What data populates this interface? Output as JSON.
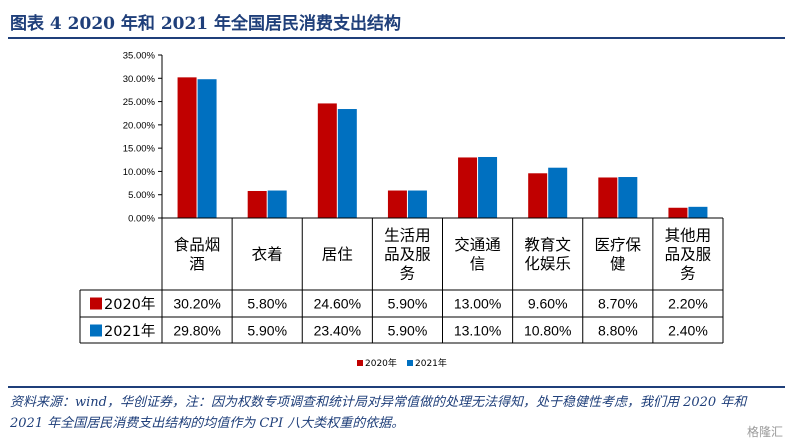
{
  "title": "图表 4  2020 年和 2021 年全国居民消费支出结构",
  "footnote": "资料来源：wind，华创证券，注：因为权数专项调查和统计局对异常值做的处理无法得知，处于稳健性考虑，我们用 2020 年和 2021 年全国居民消费支出结构的均值作为 CPI 八大类权重的依据。",
  "watermark": "格隆汇",
  "colors": {
    "s2020": "#c00000",
    "s2021": "#0070c0",
    "text": "#000000",
    "accent": "#1f3f7a"
  },
  "chart_data": {
    "type": "bar",
    "categories": [
      [
        "食品烟",
        "酒"
      ],
      [
        "衣着"
      ],
      [
        "居住"
      ],
      [
        "生活用",
        "品及服",
        "务"
      ],
      [
        "交通通",
        "信"
      ],
      [
        "教育文",
        "化娱乐"
      ],
      [
        "医疗保",
        "健"
      ],
      [
        "其他用",
        "品及服",
        "务"
      ]
    ],
    "series": [
      {
        "name": "2020年",
        "values": [
          30.2,
          5.8,
          24.6,
          5.9,
          13.0,
          9.6,
          8.7,
          2.2
        ],
        "labels": [
          "30.20%",
          "5.80%",
          "24.60%",
          "5.90%",
          "13.00%",
          "9.60%",
          "8.70%",
          "2.20%"
        ]
      },
      {
        "name": "2021年",
        "values": [
          29.8,
          5.9,
          23.4,
          5.9,
          13.1,
          10.8,
          8.8,
          2.4
        ],
        "labels": [
          "29.80%",
          "5.90%",
          "23.40%",
          "5.90%",
          "13.10%",
          "10.80%",
          "8.80%",
          "2.40%"
        ]
      }
    ],
    "yticks": [
      "0.00%",
      "5.00%",
      "10.00%",
      "15.00%",
      "20.00%",
      "25.00%",
      "30.00%",
      "35.00%"
    ],
    "ylim": [
      0,
      35
    ],
    "legend": [
      "2020年",
      "2021年"
    ],
    "legend_position": "bottom-center",
    "grid": false
  }
}
